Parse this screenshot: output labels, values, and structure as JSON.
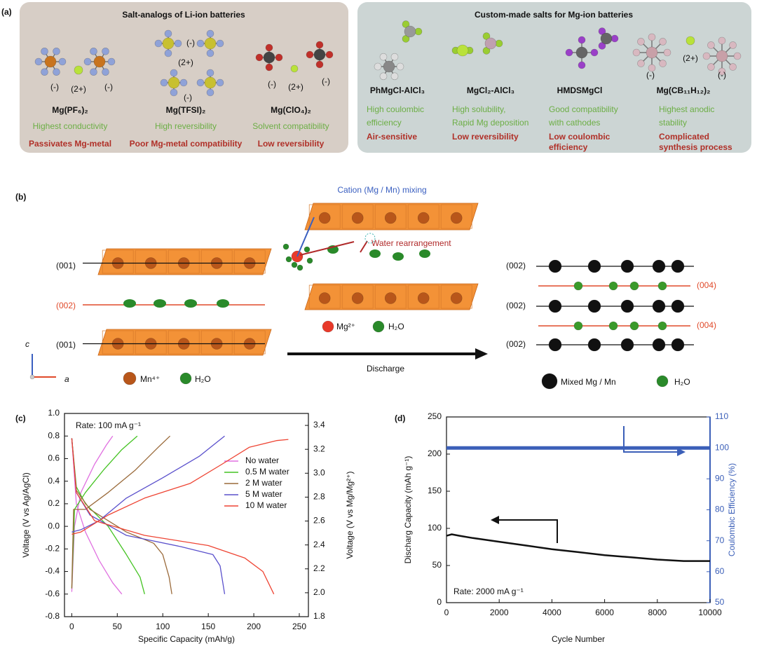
{
  "panel_a": {
    "label": "(a)",
    "groups": [
      {
        "title": "Salt-analogs of Li-ion batteries",
        "items": [
          {
            "name": "Mg(PF₆)₂",
            "property": [
              "Highest conductivity"
            ],
            "drawback": [
              "Passivates Mg-metal"
            ],
            "charges": [
              "(-)",
              "(2+)",
              "(-)"
            ]
          },
          {
            "name": "Mg(TFSI)₂",
            "property": [
              "High reversibility"
            ],
            "drawback": [
              "Poor Mg-metal compatibility"
            ],
            "charges": [
              "(-)",
              "(2+)",
              "(-)"
            ]
          },
          {
            "name": "Mg(ClO₄)₂",
            "property": [
              "Solvent compatibility"
            ],
            "drawback": [
              "Low reversibility"
            ],
            "charges": [
              "(-)",
              "(2+)",
              "(-)"
            ]
          }
        ]
      },
      {
        "title": "Custom-made salts for Mg-ion batteries",
        "items": [
          {
            "name": "PhMgCl-AlCl₃",
            "property": [
              "High coulombic",
              "efficiency"
            ],
            "drawback": [
              "Air-sensitive"
            ],
            "charges": []
          },
          {
            "name": "MgCl₂-AlCl₃",
            "property": [
              "High solubility,",
              "Rapid Mg deposition"
            ],
            "drawback": [
              "Low reversibility"
            ],
            "charges": []
          },
          {
            "name": "HMDSMgCl",
            "property": [
              "Good compatibility",
              "with cathodes"
            ],
            "drawback": [
              "Low coulombic",
              "efficiency"
            ],
            "charges": []
          },
          {
            "name": "Mg(CB₁₁H₁₂)₂",
            "property": [
              "Highest anodic",
              "stability"
            ],
            "drawback": [
              "Complicated",
              "synthesis process"
            ],
            "charges": [
              "(2+)",
              "(-)",
              "(-)"
            ]
          }
        ]
      }
    ]
  },
  "panel_b": {
    "label": "(b)",
    "planes_left": [
      "(001)",
      "(002)",
      "(001)"
    ],
    "mixing": "Cation (Mg / Mn) mixing",
    "water": "Water rearrangement",
    "legend_mid": [
      "Mg²⁺",
      "H₂O"
    ],
    "arrow": "Discharge",
    "planes_right": [
      "(002)",
      "(004)",
      "(002)",
      "(004)",
      "(002)"
    ],
    "legend_left": [
      "Mn⁴⁺",
      "H₂O"
    ],
    "legend_right": [
      "Mixed Mg / Mn",
      "H₂O"
    ],
    "axes": [
      "c",
      "a"
    ]
  },
  "chart_data": [
    {
      "type": "line",
      "label": "(c)",
      "annotation": "Rate: 100 mA g⁻¹",
      "xlabel": "Specific Capacity (mAh/g)",
      "ylabel": "Voltage (V vs Ag/AgCl)",
      "y2label": "Voltage (V vs Mg/Mg²⁺)",
      "xlim": [
        -8,
        260
      ],
      "ylim": [
        -0.8,
        1.0
      ],
      "y2lim": [
        1.8,
        3.5
      ],
      "xticks": [
        0,
        50,
        100,
        150,
        200,
        250
      ],
      "yticks": [
        {
          "value": 1,
          "label": "1.0"
        },
        0.8,
        0.6,
        0.4,
        0.2,
        {
          "value": 0,
          "label": "0.0"
        },
        -0.2,
        -0.4,
        -0.6,
        -0.8
      ],
      "y2ticks": [
        1.8,
        {
          "value": 2,
          "label": "2.0"
        },
        2.2,
        2.4,
        2.6,
        2.8,
        {
          "value": 3,
          "label": "3.0"
        },
        3.2,
        3.4
      ],
      "series": [
        {
          "name": "No water",
          "color": "#e070e0",
          "x": [
            0,
            5,
            15,
            30,
            45,
            55,
            null,
            0,
            3,
            10,
            25,
            38,
            45
          ],
          "values": [
            0.78,
            0.2,
            -0.05,
            -0.3,
            -0.5,
            -0.6,
            null,
            -0.58,
            0,
            0.3,
            0.55,
            0.72,
            0.8
          ]
        },
        {
          "name": "0.5 M water",
          "color": "#44c322",
          "x": [
            0,
            5,
            15,
            40,
            60,
            75,
            80,
            null,
            0,
            3,
            15,
            35,
            55,
            72
          ],
          "values": [
            0.78,
            0.35,
            0.2,
            0,
            -0.25,
            -0.45,
            -0.6,
            null,
            -0.55,
            0.15,
            0.3,
            0.5,
            0.68,
            0.8
          ]
        },
        {
          "name": "2 M water",
          "color": "#9a6a3a",
          "x": [
            0,
            5,
            20,
            60,
            90,
            100,
            107,
            110,
            null,
            0,
            2,
            15,
            40,
            70,
            95,
            108
          ],
          "values": [
            0.78,
            0.32,
            0.15,
            -0.05,
            -0.15,
            -0.25,
            -0.45,
            -0.6,
            null,
            -0.55,
            0.15,
            0.15,
            0.3,
            0.5,
            0.7,
            0.8
          ]
        },
        {
          "name": "5 M water",
          "color": "#5a50cc",
          "x": [
            0,
            5,
            20,
            60,
            120,
            155,
            163,
            168,
            null,
            0,
            10,
            30,
            60,
            100,
            140,
            168
          ],
          "values": [
            0.78,
            0.3,
            0.1,
            -0.08,
            -0.18,
            -0.25,
            -0.35,
            -0.6,
            null,
            -0.05,
            -0.03,
            0.05,
            0.25,
            0.43,
            0.62,
            0.8
          ]
        },
        {
          "name": "10 M water",
          "color": "#ee4433",
          "x": [
            0,
            5,
            25,
            80,
            150,
            190,
            210,
            222,
            null,
            0,
            10,
            40,
            80,
            130,
            165,
            195,
            225,
            238
          ],
          "values": [
            0.78,
            0.3,
            0.05,
            -0.08,
            -0.17,
            -0.28,
            -0.4,
            -0.6,
            null,
            -0.07,
            -0.05,
            0.1,
            0.25,
            0.38,
            0.55,
            0.7,
            0.76,
            0.77
          ]
        }
      ]
    },
    {
      "type": "line",
      "label": "(d)",
      "annotation": "Rate: 2000 mA g⁻¹",
      "xlabel": "Cycle Number",
      "ylabel": "Discharg Capacity (mAh g⁻¹)",
      "y2label": "Coulombic Efficiency (%)",
      "xlim": [
        0,
        10000
      ],
      "ylim": [
        0,
        250
      ],
      "y2lim": [
        50,
        110
      ],
      "xticks": [
        0,
        2000,
        4000,
        6000,
        8000,
        10000
      ],
      "yticks": [
        0,
        50,
        100,
        150,
        200,
        250
      ],
      "y2ticks": [
        50,
        60,
        70,
        80,
        90,
        100,
        110
      ],
      "series": [
        {
          "color": "#111111",
          "x": [
            0,
            200,
            500,
            1000,
            2000,
            3000,
            4000,
            5000,
            6000,
            7000,
            8000,
            9000,
            10000
          ],
          "values": [
            90,
            92,
            90,
            87,
            82,
            77,
            72,
            68,
            64,
            61,
            58,
            56,
            56
          ]
        },
        {
          "color": "#3b5fb8",
          "axis": "y2",
          "x": [
            0,
            1000,
            2000,
            3000,
            4000,
            5000,
            6000,
            7000,
            8000,
            9000,
            10000
          ],
          "values": [
            100,
            100,
            100,
            100,
            100,
            100,
            100,
            100,
            100,
            100,
            100
          ]
        }
      ]
    }
  ]
}
